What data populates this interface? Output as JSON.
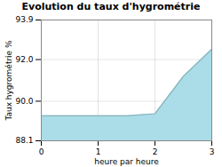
{
  "chart_data": {
    "type": "area",
    "title": "Evolution du taux d'hygrométrie",
    "xlabel": "heure par heure",
    "ylabel": "Taux hygrométrie %",
    "x": [
      0,
      0.5,
      1,
      1.5,
      2,
      2.5,
      3
    ],
    "values": [
      89.3,
      89.3,
      89.3,
      89.3,
      89.4,
      91.2,
      92.5
    ],
    "color": "#aadde8",
    "xlim": [
      0,
      3
    ],
    "ylim": [
      88.1,
      93.9
    ],
    "xticks": [
      0,
      1,
      2,
      3
    ],
    "yticks": [
      88.1,
      {
        "value": 90,
        "label": "90.0"
      },
      {
        "value": 92,
        "label": "92.0"
      },
      93.9
    ],
    "grid": true
  }
}
